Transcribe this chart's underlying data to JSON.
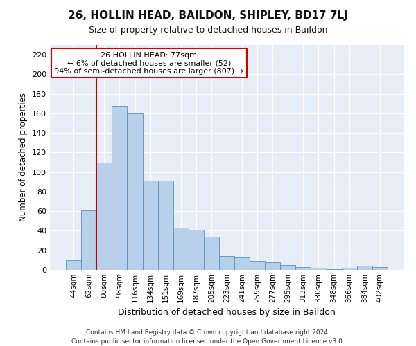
{
  "title": "26, HOLLIN HEAD, BAILDON, SHIPLEY, BD17 7LJ",
  "subtitle": "Size of property relative to detached houses in Baildon",
  "xlabel": "Distribution of detached houses by size in Baildon",
  "ylabel": "Number of detached properties",
  "bar_labels": [
    "44sqm",
    "62sqm",
    "80sqm",
    "98sqm",
    "116sqm",
    "134sqm",
    "151sqm",
    "169sqm",
    "187sqm",
    "205sqm",
    "223sqm",
    "241sqm",
    "259sqm",
    "277sqm",
    "295sqm",
    "313sqm",
    "330sqm",
    "348sqm",
    "366sqm",
    "384sqm",
    "402sqm"
  ],
  "bar_values": [
    10,
    61,
    110,
    168,
    160,
    91,
    91,
    43,
    41,
    34,
    14,
    13,
    9,
    8,
    5,
    3,
    2,
    1,
    2,
    4,
    3
  ],
  "bar_color": "#b8d0ea",
  "bar_edge_color": "#5a8fc0",
  "vline_x_idx": 2,
  "vline_color": "#cc0000",
  "ylim": [
    0,
    230
  ],
  "yticks": [
    0,
    20,
    40,
    60,
    80,
    100,
    120,
    140,
    160,
    180,
    200,
    220
  ],
  "annotation_title": "26 HOLLIN HEAD: 77sqm",
  "annotation_line1": "← 6% of detached houses are smaller (52)",
  "annotation_line2": "94% of semi-detached houses are larger (807) →",
  "annotation_box_color": "#cc0000",
  "footer_line1": "Contains HM Land Registry data © Crown copyright and database right 2024.",
  "footer_line2": "Contains public sector information licensed under the Open Government Licence v3.0.",
  "bg_color": "#ffffff",
  "plot_bg_color": "#e8eef7",
  "grid_color": "#ffffff",
  "title_fontsize": 11,
  "subtitle_fontsize": 9
}
